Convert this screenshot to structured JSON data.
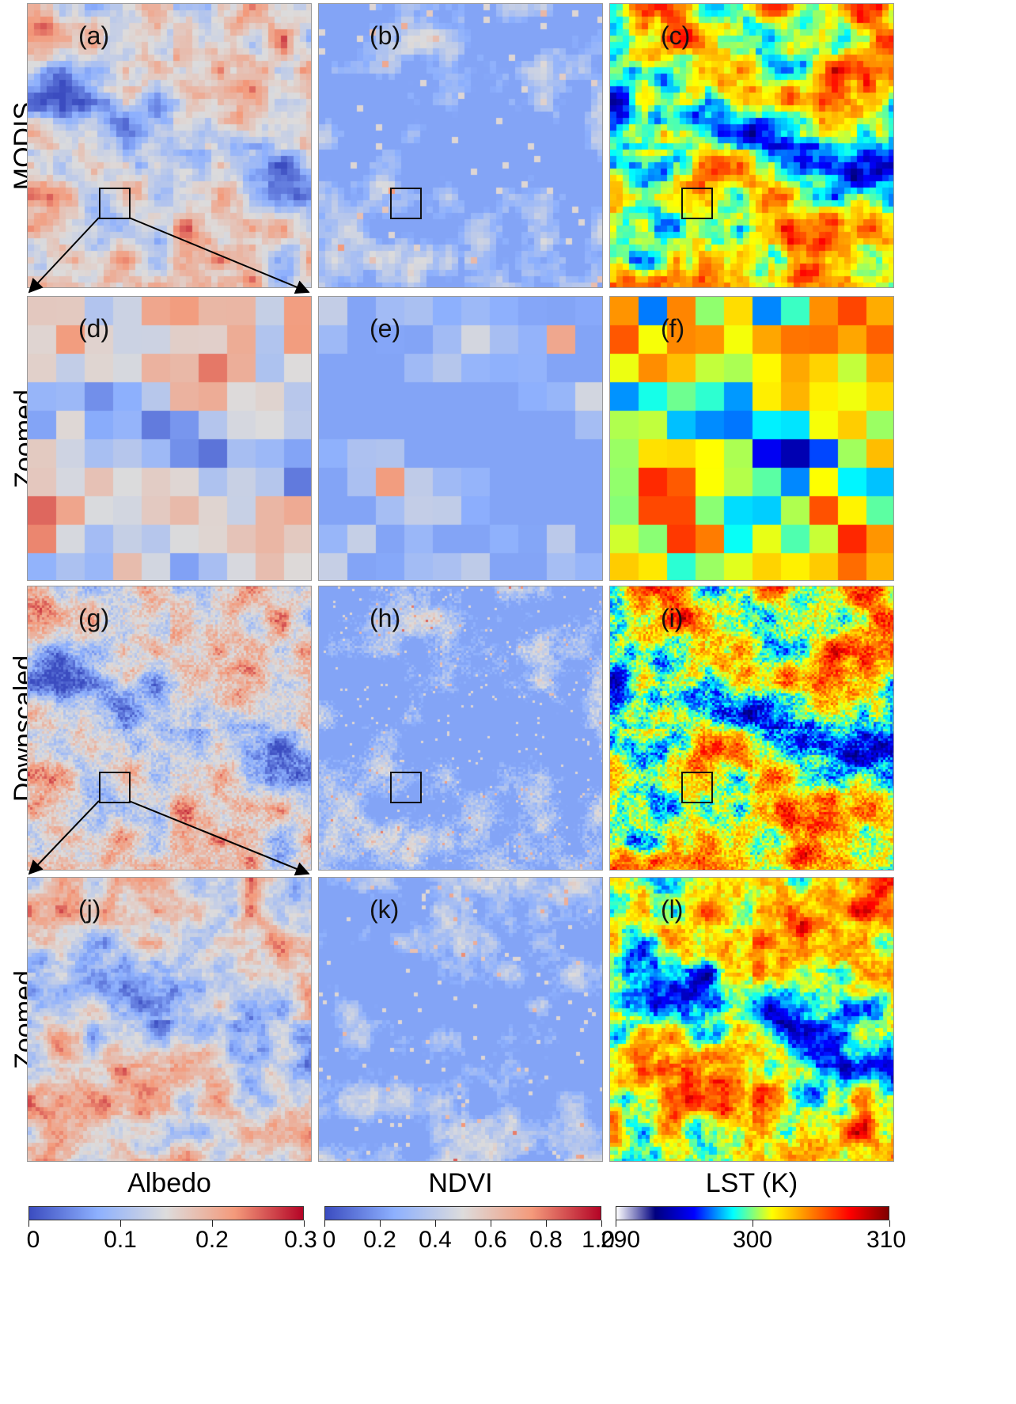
{
  "rows": [
    {
      "label": "MODIS",
      "panels": [
        {
          "id": "a",
          "label": "(a)",
          "var": "albedo"
        },
        {
          "id": "b",
          "label": "(b)",
          "var": "ndvi"
        },
        {
          "id": "c",
          "label": "(c)",
          "var": "lst"
        }
      ]
    },
    {
      "label": "Zoomed",
      "panels": [
        {
          "id": "d",
          "label": "(d)",
          "var": "albedo"
        },
        {
          "id": "e",
          "label": "(e)",
          "var": "ndvi"
        },
        {
          "id": "f",
          "label": "(f)",
          "var": "lst"
        }
      ]
    },
    {
      "label": "Downscaled",
      "panels": [
        {
          "id": "g",
          "label": "(g)",
          "var": "albedo"
        },
        {
          "id": "h",
          "label": "(h)",
          "var": "ndvi"
        },
        {
          "id": "i",
          "label": "(i)",
          "var": "lst"
        }
      ]
    },
    {
      "label": "Zoomed",
      "panels": [
        {
          "id": "j",
          "label": "(j)",
          "var": "albedo"
        },
        {
          "id": "k",
          "label": "(k)",
          "var": "ndvi"
        },
        {
          "id": "l",
          "label": "(l)",
          "var": "lst"
        }
      ]
    }
  ],
  "colorbars": [
    {
      "title": "Albedo",
      "ticks": [
        "0",
        "0.1",
        "0.2",
        "0.3"
      ],
      "range": [
        0,
        0.3
      ],
      "colors": [
        "#3b4cc0",
        "#8db0fe",
        "#dddcdc",
        "#f49a7b",
        "#b40426"
      ]
    },
    {
      "title": "NDVI",
      "ticks": [
        "0",
        "0.2",
        "0.4",
        "0.6",
        "0.8",
        "1.0"
      ],
      "range": [
        0,
        1.0
      ],
      "colors": [
        "#3b4cc0",
        "#8db0fe",
        "#dddcdc",
        "#f49a7b",
        "#b40426"
      ]
    },
    {
      "title": "LST (K)",
      "ticks": [
        "290",
        "300",
        "310"
      ],
      "range": [
        290,
        310
      ],
      "colors": [
        "#ffffff",
        "#00007f",
        "#0000ff",
        "#00ffff",
        "#ffff00",
        "#ff7f00",
        "#ff0000",
        "#7f0000"
      ]
    }
  ]
}
